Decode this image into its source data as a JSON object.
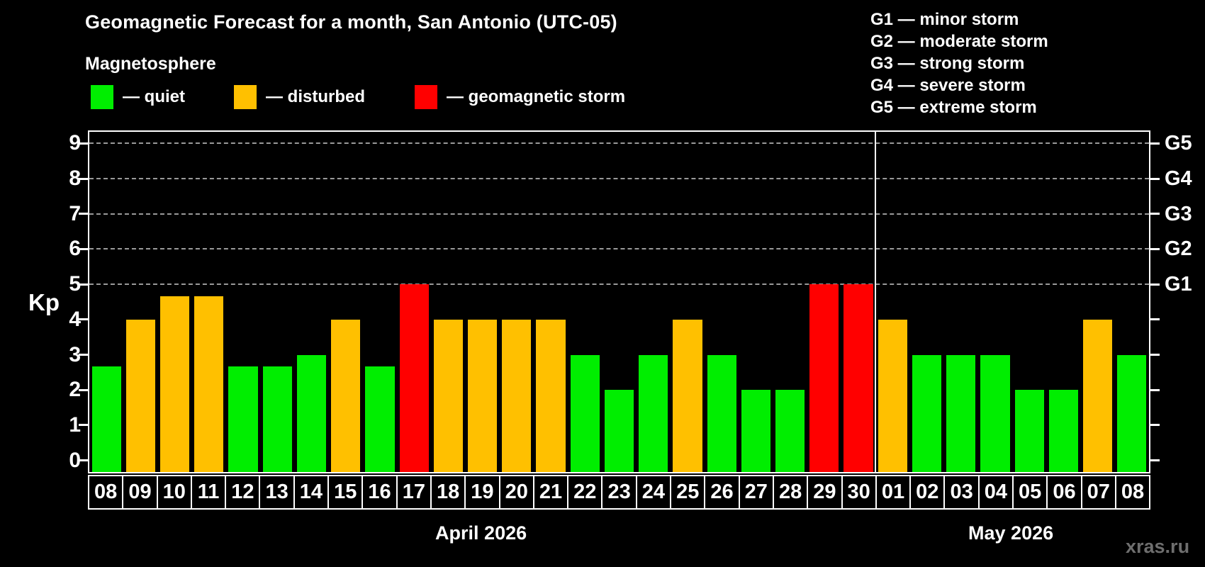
{
  "title": "Geomagnetic Forecast for a month, San Antonio (UTC-05)",
  "subtitle": "Magnetosphere",
  "legend": {
    "items": [
      {
        "label": "— quiet",
        "status": "quiet",
        "color": "#00EE00"
      },
      {
        "label": "— disturbed",
        "status": "disturbed",
        "color": "#FFC000"
      },
      {
        "label": "— geomagnetic storm",
        "status": "storm",
        "color": "#FF0000"
      }
    ]
  },
  "storm_scale": [
    "G1 — minor storm",
    "G2 — moderate storm",
    "G3 — strong storm",
    "G4 — severe storm",
    "G5 — extreme storm"
  ],
  "watermark": "xras.ru",
  "chart_data": {
    "type": "bar",
    "ylabel": "Kp",
    "ylim": [
      -0.33,
      9.33
    ],
    "y_ticks": [
      0,
      1,
      2,
      3,
      4,
      5,
      6,
      7,
      8,
      9
    ],
    "gridlines_at": [
      5,
      6,
      7,
      8,
      9
    ],
    "right_axis": [
      {
        "kp": 5,
        "label": "G1"
      },
      {
        "kp": 6,
        "label": "G2"
      },
      {
        "kp": 7,
        "label": "G3"
      },
      {
        "kp": 8,
        "label": "G4"
      },
      {
        "kp": 9,
        "label": "G5"
      }
    ],
    "months": [
      {
        "label": "April 2026",
        "days": 23
      },
      {
        "label": "May 2026",
        "days": 8
      }
    ],
    "categories": [
      "08",
      "09",
      "10",
      "11",
      "12",
      "13",
      "14",
      "15",
      "16",
      "17",
      "18",
      "19",
      "20",
      "21",
      "22",
      "23",
      "24",
      "25",
      "26",
      "27",
      "28",
      "29",
      "30",
      "01",
      "02",
      "03",
      "04",
      "05",
      "06",
      "07",
      "08"
    ],
    "values": [
      2.67,
      4,
      4.67,
      4.67,
      2.67,
      2.67,
      3,
      4,
      2.67,
      5,
      4,
      4,
      4,
      4,
      3,
      2,
      3,
      4,
      3,
      2,
      2,
      5,
      5,
      4,
      3,
      3,
      3,
      2,
      2,
      4,
      3
    ],
    "statuses": [
      "quiet",
      "disturbed",
      "disturbed",
      "disturbed",
      "quiet",
      "quiet",
      "quiet",
      "disturbed",
      "quiet",
      "storm",
      "disturbed",
      "disturbed",
      "disturbed",
      "disturbed",
      "quiet",
      "quiet",
      "quiet",
      "disturbed",
      "quiet",
      "quiet",
      "quiet",
      "storm",
      "storm",
      "disturbed",
      "quiet",
      "quiet",
      "quiet",
      "quiet",
      "quiet",
      "disturbed",
      "quiet"
    ],
    "status_colors": {
      "quiet": "#00EE00",
      "disturbed": "#FFC000",
      "storm": "#FF0000"
    }
  }
}
